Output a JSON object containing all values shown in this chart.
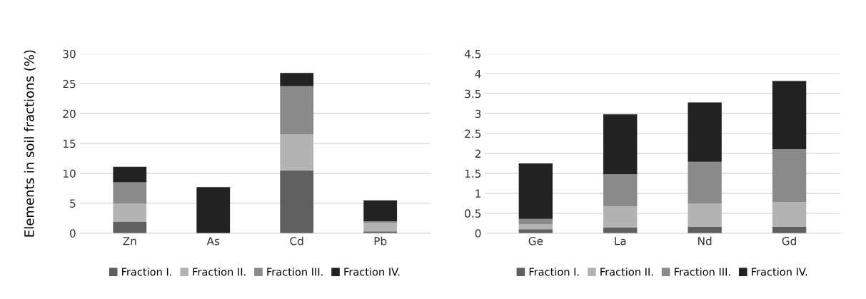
{
  "chart_data": [
    {
      "type": "bar",
      "stacked": true,
      "ylabel": "Elements in soil fractions (%)",
      "categories": [
        "Zn",
        "As",
        "Cd",
        "Pb"
      ],
      "ylim": [
        0,
        30
      ],
      "yticks": [
        0,
        5,
        10,
        15,
        20,
        25,
        30
      ],
      "grid": "y",
      "legend": "bottom",
      "series": [
        {
          "name": "Fraction I.",
          "color": "#5f5f5f",
          "values": [
            1.9,
            null,
            10.5,
            0.3
          ]
        },
        {
          "name": "Fraction II.",
          "color": "#b3b3b3",
          "values": [
            3.1,
            0,
            6.0,
            1.4
          ]
        },
        {
          "name": "Fraction III.",
          "color": "#8a8a8a",
          "values": [
            3.5,
            0,
            8.1,
            0.3
          ]
        },
        {
          "name": "Fraction IV.",
          "color": "#222222",
          "values": [
            2.6,
            7.7,
            2.2,
            3.5
          ]
        }
      ]
    },
    {
      "type": "bar",
      "stacked": true,
      "categories": [
        "Ge",
        "La",
        "Nd",
        "Gd"
      ],
      "ylim": [
        0,
        4.5
      ],
      "yticks": [
        0,
        0.5,
        1,
        1.5,
        2,
        2.5,
        3,
        3.5,
        4,
        4.5
      ],
      "grid": "y",
      "legend": "bottom",
      "series": [
        {
          "name": "Fraction I.",
          "color": "#5f5f5f",
          "values": [
            0.1,
            0.15,
            0.16,
            0.16
          ]
        },
        {
          "name": "Fraction II.",
          "color": "#b3b3b3",
          "values": [
            0.12,
            0.52,
            0.58,
            0.62
          ]
        },
        {
          "name": "Fraction III.",
          "color": "#8a8a8a",
          "values": [
            0.14,
            0.81,
            1.05,
            1.33
          ]
        },
        {
          "name": "Fraction IV.",
          "color": "#222222",
          "values": [
            1.39,
            1.5,
            1.49,
            1.71
          ]
        }
      ]
    }
  ]
}
